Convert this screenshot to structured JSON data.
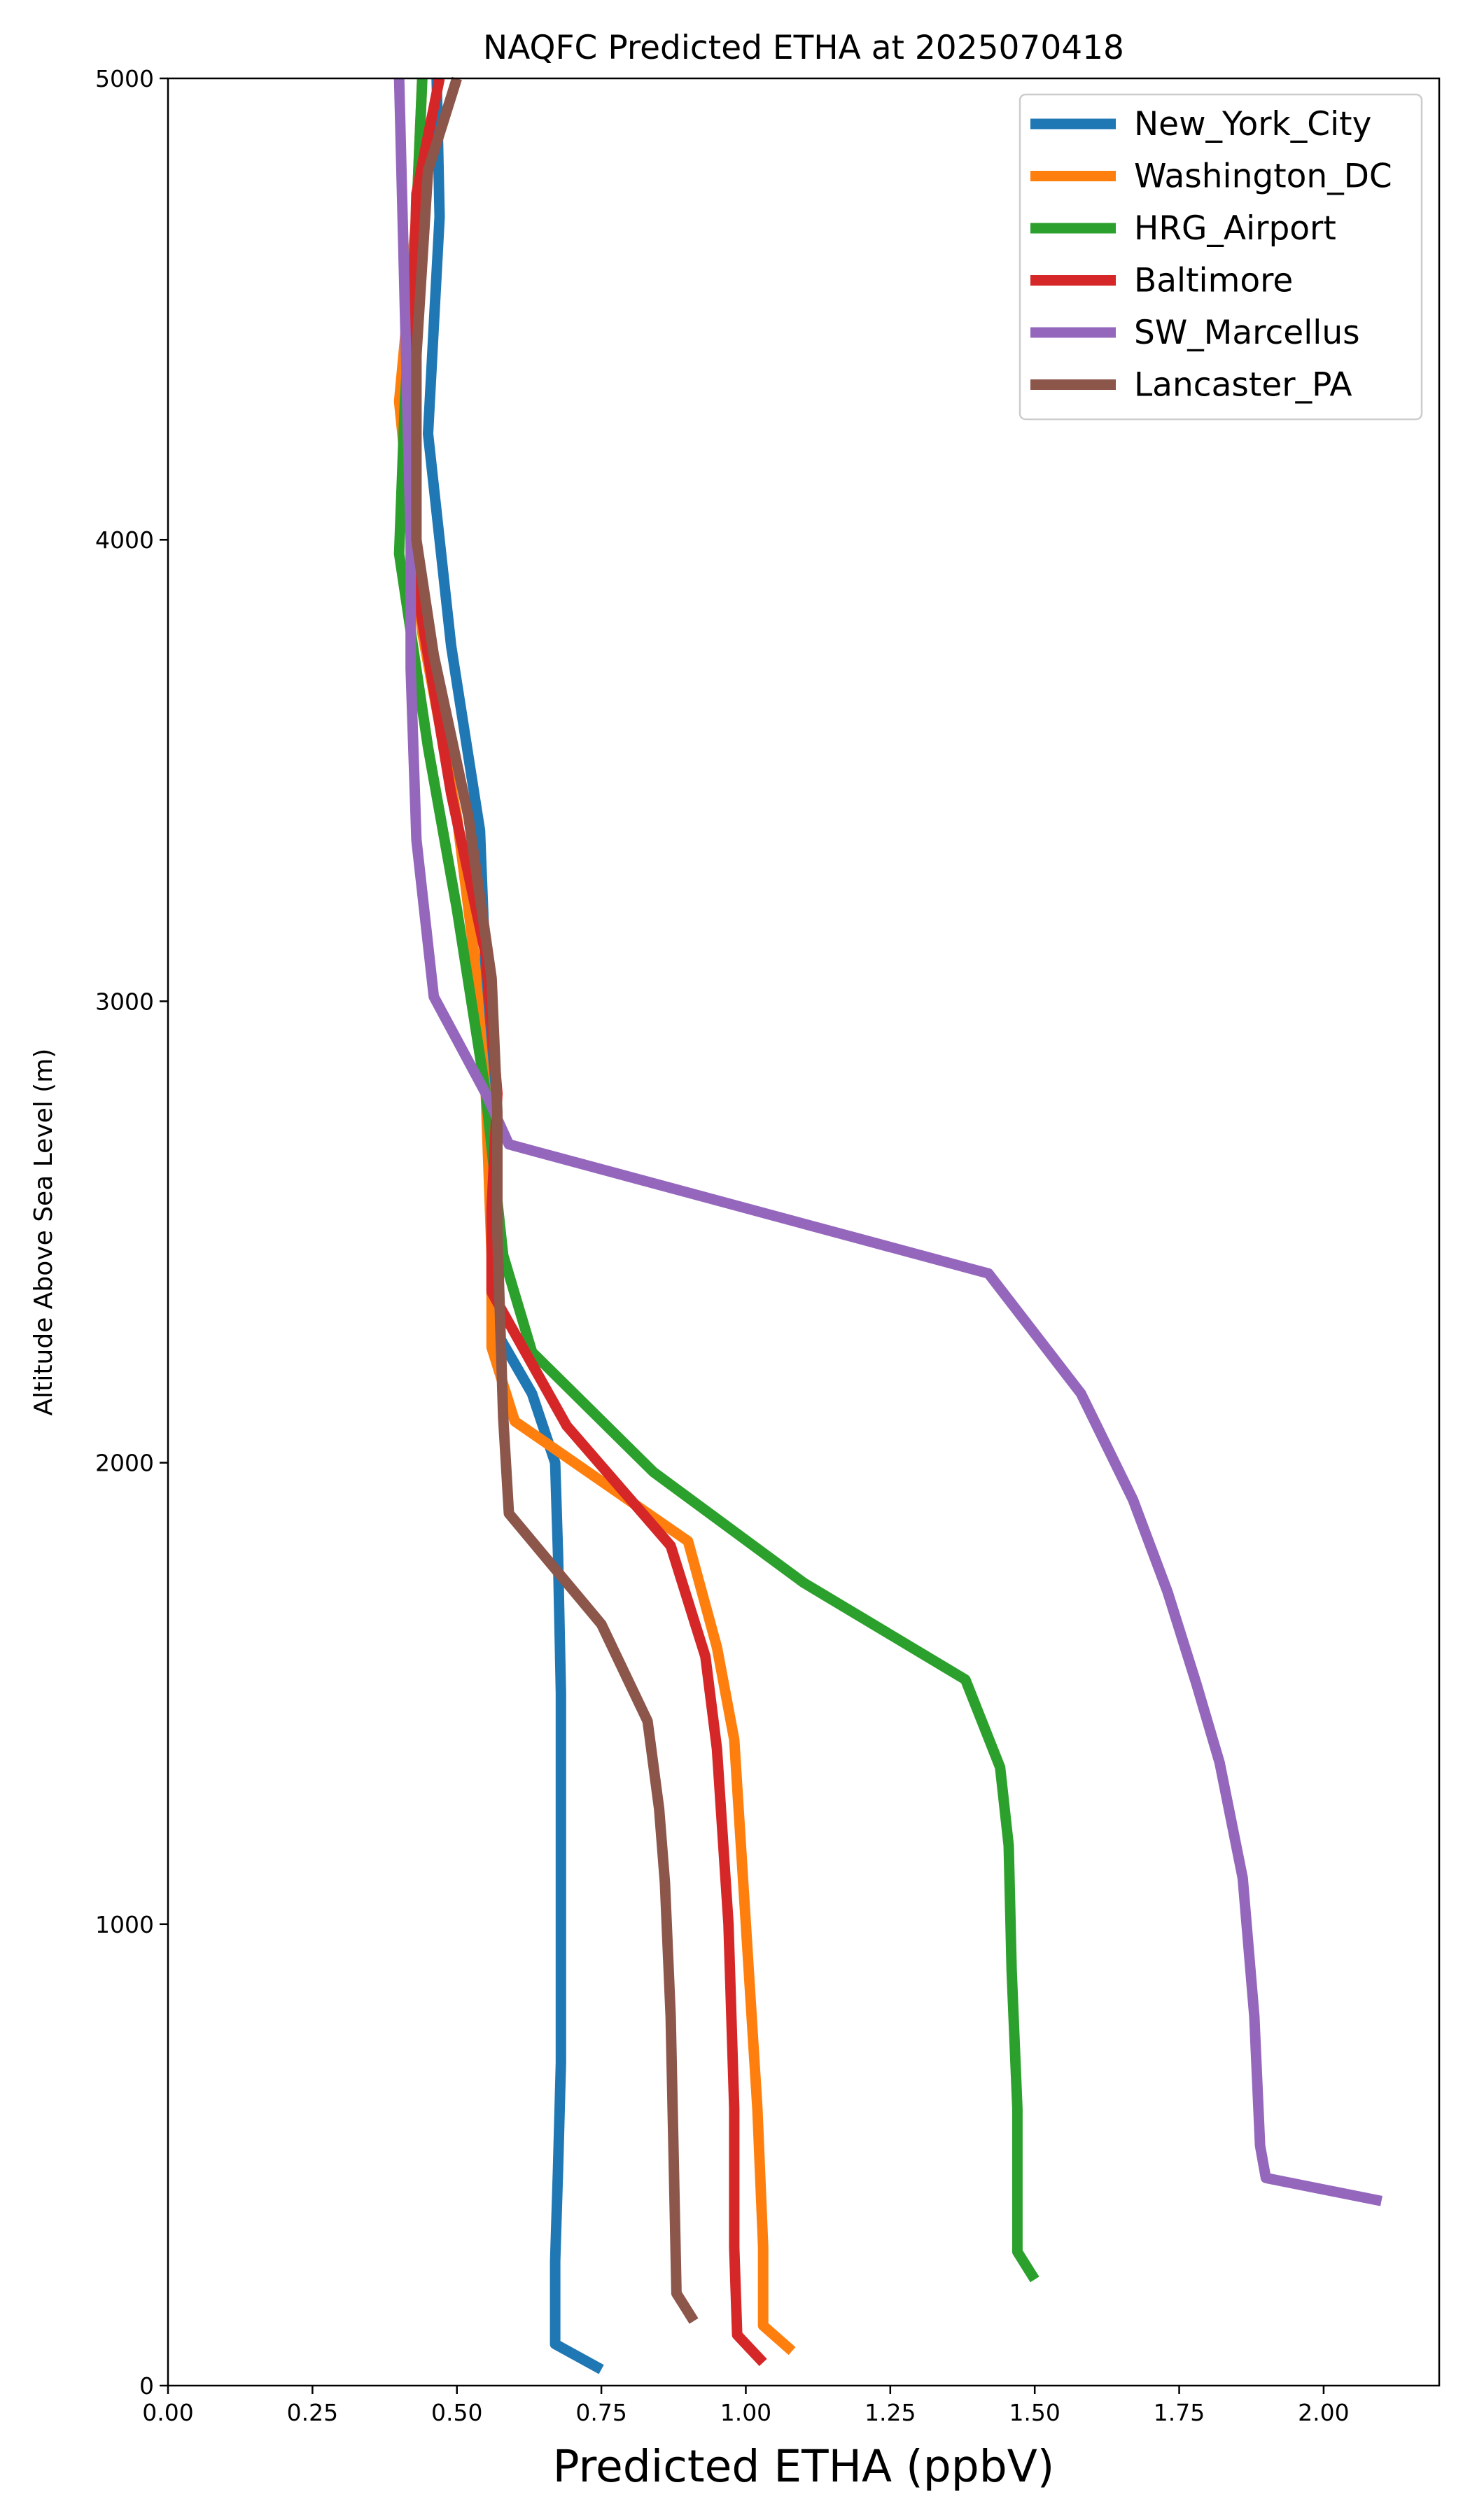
{
  "chart_data": {
    "type": "line",
    "title": "NAQFC Predicted ETHA at 2025070418",
    "xlabel": "Predicted ETHA (ppbV)",
    "ylabel": "Altitude Above Sea Level (m)",
    "xlim": [
      0,
      2.2
    ],
    "ylim": [
      0,
      5000
    ],
    "xticks": [
      0,
      0.25,
      0.5,
      0.75,
      1.0,
      1.25,
      1.5,
      1.75,
      2.0
    ],
    "xtick_labels": [
      "0.00",
      "0.25",
      "0.50",
      "0.75",
      "1.00",
      "1.25",
      "1.50",
      "1.75",
      "2.00"
    ],
    "yticks": [
      0,
      1000,
      2000,
      3000,
      4000,
      5000
    ],
    "ytick_labels": [
      "0",
      "1000",
      "2000",
      "3000",
      "4000",
      "5000"
    ],
    "grid": false,
    "legend_position": "top-right",
    "series": [
      {
        "name": "New_York_City",
        "color": "#1f77b4",
        "points": [
          [
            0.75,
            35
          ],
          [
            0.67,
            90
          ],
          [
            0.67,
            270
          ],
          [
            0.675,
            470
          ],
          [
            0.68,
            700
          ],
          [
            0.68,
            1100
          ],
          [
            0.68,
            1500
          ],
          [
            0.675,
            1800
          ],
          [
            0.67,
            2000
          ],
          [
            0.63,
            2150
          ],
          [
            0.57,
            2280
          ],
          [
            0.56,
            2550
          ],
          [
            0.56,
            2800
          ],
          [
            0.55,
            3050
          ],
          [
            0.54,
            3370
          ],
          [
            0.49,
            3770
          ],
          [
            0.45,
            4230
          ],
          [
            0.47,
            4700
          ],
          [
            0.465,
            5000
          ]
        ]
      },
      {
        "name": "Washington_DC",
        "color": "#ff7f0e",
        "points": [
          [
            1.08,
            75
          ],
          [
            1.03,
            130
          ],
          [
            1.03,
            300
          ],
          [
            1.02,
            600
          ],
          [
            1.0,
            1000
          ],
          [
            0.98,
            1400
          ],
          [
            0.95,
            1600
          ],
          [
            0.9,
            1830
          ],
          [
            0.6,
            2090
          ],
          [
            0.56,
            2250
          ],
          [
            0.56,
            2450
          ],
          [
            0.55,
            2800
          ],
          [
            0.53,
            3100
          ],
          [
            0.5,
            3400
          ],
          [
            0.44,
            3800
          ],
          [
            0.4,
            4300
          ],
          [
            0.43,
            4700
          ],
          [
            0.44,
            5000
          ]
        ]
      },
      {
        "name": "HRG_Airport",
        "color": "#2ca02c",
        "points": [
          [
            1.5,
            230
          ],
          [
            1.47,
            290
          ],
          [
            1.47,
            600
          ],
          [
            1.46,
            900
          ],
          [
            1.455,
            1170
          ],
          [
            1.44,
            1340
          ],
          [
            1.38,
            1530
          ],
          [
            1.1,
            1740
          ],
          [
            0.84,
            1980
          ],
          [
            0.63,
            2240
          ],
          [
            0.58,
            2450
          ],
          [
            0.55,
            2800
          ],
          [
            0.5,
            3200
          ],
          [
            0.45,
            3550
          ],
          [
            0.4,
            3970
          ],
          [
            0.41,
            4300
          ],
          [
            0.43,
            4700
          ],
          [
            0.44,
            5000
          ]
        ]
      },
      {
        "name": "Baltimore",
        "color": "#d62728",
        "points": [
          [
            1.03,
            50
          ],
          [
            0.985,
            110
          ],
          [
            0.98,
            300
          ],
          [
            0.98,
            600
          ],
          [
            0.97,
            1000
          ],
          [
            0.95,
            1380
          ],
          [
            0.93,
            1580
          ],
          [
            0.87,
            1820
          ],
          [
            0.69,
            2080
          ],
          [
            0.56,
            2370
          ],
          [
            0.56,
            2550
          ],
          [
            0.57,
            2800
          ],
          [
            0.55,
            3100
          ],
          [
            0.49,
            3450
          ],
          [
            0.43,
            3900
          ],
          [
            0.42,
            4300
          ],
          [
            0.43,
            4750
          ],
          [
            0.47,
            5000
          ]
        ]
      },
      {
        "name": "SW_Marcellus",
        "color": "#9467bd",
        "points": [
          [
            2.1,
            400
          ],
          [
            1.9,
            450
          ],
          [
            1.89,
            520
          ],
          [
            1.88,
            800
          ],
          [
            1.86,
            1100
          ],
          [
            1.82,
            1350
          ],
          [
            1.78,
            1520
          ],
          [
            1.73,
            1720
          ],
          [
            1.67,
            1920
          ],
          [
            1.58,
            2150
          ],
          [
            1.42,
            2410
          ],
          [
            0.59,
            2690
          ],
          [
            0.55,
            2800
          ],
          [
            0.46,
            3010
          ],
          [
            0.43,
            3350
          ],
          [
            0.42,
            3720
          ],
          [
            0.42,
            4000
          ],
          [
            0.41,
            4500
          ],
          [
            0.4,
            5000
          ]
        ]
      },
      {
        "name": "Lancaster_PA",
        "color": "#8c564b",
        "points": [
          [
            0.91,
            140
          ],
          [
            0.88,
            200
          ],
          [
            0.875,
            500
          ],
          [
            0.87,
            800
          ],
          [
            0.86,
            1090
          ],
          [
            0.85,
            1250
          ],
          [
            0.83,
            1440
          ],
          [
            0.75,
            1650
          ],
          [
            0.59,
            1890
          ],
          [
            0.58,
            2100
          ],
          [
            0.57,
            2500
          ],
          [
            0.57,
            2760
          ],
          [
            0.56,
            3050
          ],
          [
            0.52,
            3400
          ],
          [
            0.46,
            3750
          ],
          [
            0.43,
            4000
          ],
          [
            0.43,
            4400
          ],
          [
            0.45,
            4800
          ],
          [
            0.5,
            5000
          ]
        ]
      }
    ]
  }
}
